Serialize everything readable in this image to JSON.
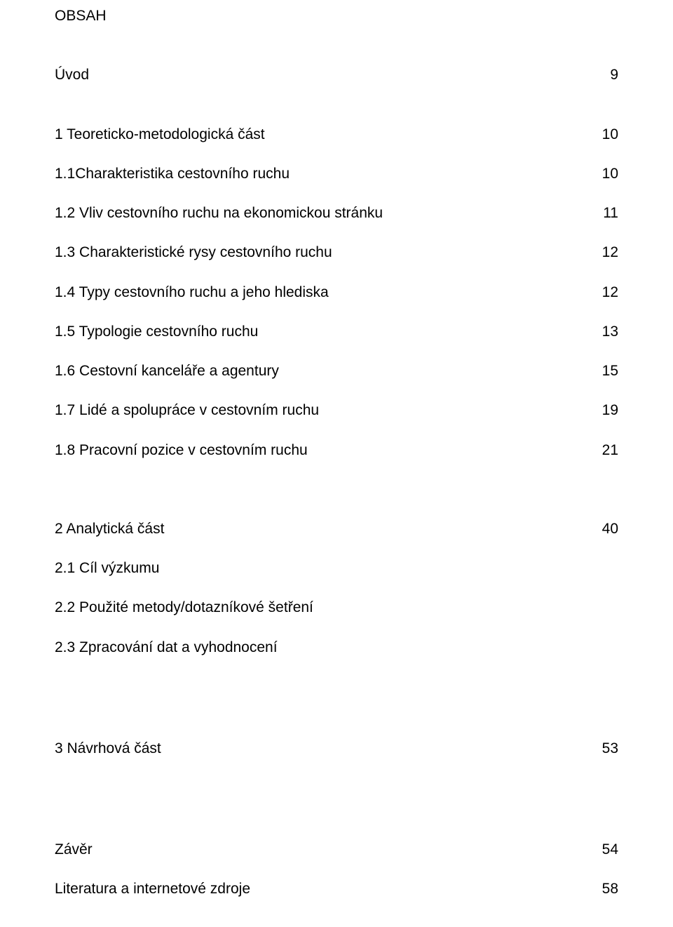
{
  "title": "OBSAH",
  "intro": {
    "label": "Úvod",
    "page": "9"
  },
  "section1": {
    "heading": {
      "label": "1 Teoreticko-metodologická část",
      "page": "10"
    },
    "items": [
      {
        "label": "1.1Charakteristika cestovního ruchu",
        "page": "10"
      },
      {
        "label": "1.2 Vliv cestovního ruchu na ekonomickou stránku",
        "page": "11"
      },
      {
        "label": "1.3 Charakteristické rysy cestovního ruchu",
        "page": "12"
      },
      {
        "label": "1.4 Typy cestovního ruchu a jeho hlediska",
        "page": "12"
      },
      {
        "label": "1.5 Typologie cestovního ruchu",
        "page": "13"
      },
      {
        "label": "1.6 Cestovní kanceláře a agentury",
        "page": "15"
      },
      {
        "label": "1.7 Lidé a spolupráce v cestovním ruchu",
        "page": "19"
      },
      {
        "label": "1.8 Pracovní pozice v cestovním ruchu",
        "page": "21"
      }
    ]
  },
  "section2": {
    "heading": {
      "label": "2 Analytická část",
      "page": "40"
    },
    "items": [
      {
        "label": "2.1 Cíl výzkumu"
      },
      {
        "label": "2.2 Použité metody/dotazníkové šetření"
      },
      {
        "label": "2.3 Zpracování dat a vyhodnocení"
      }
    ]
  },
  "section3": {
    "heading": {
      "label": "3 Návrhová část",
      "page": "53"
    }
  },
  "zaver": {
    "label": "Závěr",
    "page": "54"
  },
  "lit": {
    "label": "Literatura a internetové zdroje",
    "page": "58"
  }
}
